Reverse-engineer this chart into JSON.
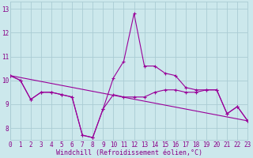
{
  "hours": [
    0,
    1,
    2,
    3,
    4,
    5,
    6,
    7,
    8,
    9,
    10,
    11,
    12,
    13,
    14,
    15,
    16,
    17,
    18,
    19,
    20,
    21,
    22,
    23
  ],
  "windchill_line": [
    10.2,
    10.0,
    9.2,
    9.5,
    9.5,
    9.4,
    9.3,
    7.7,
    7.6,
    8.8,
    10.1,
    10.8,
    12.8,
    10.6,
    10.6,
    10.3,
    10.2,
    9.7,
    9.6,
    9.6,
    9.6,
    8.6,
    8.9,
    8.3
  ],
  "temp_line": [
    10.2,
    10.0,
    9.2,
    9.5,
    9.5,
    9.4,
    9.3,
    7.7,
    7.6,
    8.8,
    9.4,
    9.3,
    9.3,
    9.3,
    9.5,
    9.6,
    9.6,
    9.5,
    9.5,
    9.6,
    9.6,
    8.6,
    8.9,
    8.3
  ],
  "trend_x": [
    0,
    23
  ],
  "trend_y": [
    10.2,
    8.3
  ],
  "bg_color": "#cce8ec",
  "grid_color": "#aaccd4",
  "line_color": "#990099",
  "ylim": [
    7.5,
    13.3
  ],
  "xlim": [
    0,
    23
  ],
  "yticks": [
    8,
    9,
    10,
    11,
    12,
    13
  ],
  "xticks": [
    0,
    1,
    2,
    3,
    4,
    5,
    6,
    7,
    8,
    9,
    10,
    11,
    12,
    13,
    14,
    15,
    16,
    17,
    18,
    19,
    20,
    21,
    22,
    23
  ],
  "xlabel": "Windchill (Refroidissement éolien,°C)",
  "font_color": "#880088",
  "tick_fontsize": 5.5,
  "label_fontsize": 6.0
}
